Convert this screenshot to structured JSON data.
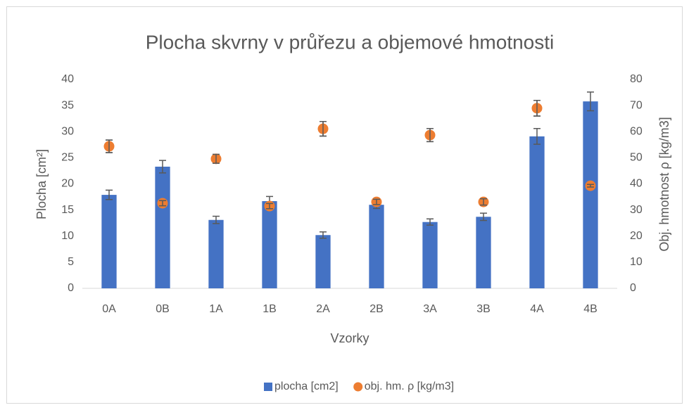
{
  "chart_data": {
    "type": "bar",
    "title": "Plocha skvrny v průřezu a objemové hmotnosti",
    "x_label": "Vzorky",
    "y_label": "Plocha [cm²]",
    "y2_label": "Obj. hmotnost ρ [kg/m3]",
    "categories": [
      "0A",
      "0B",
      "1A",
      "1B",
      "2A",
      "2B",
      "3A",
      "3B",
      "4A",
      "4B"
    ],
    "series": [
      {
        "name": "plocha [cm2]",
        "type": "bar",
        "color": "#4472c4",
        "values": [
          17.9,
          23.3,
          13.1,
          16.7,
          10.2,
          16.0,
          12.7,
          13.7,
          29.1,
          35.8
        ],
        "errors": [
          0.9,
          1.2,
          0.7,
          0.9,
          0.6,
          0.7,
          0.6,
          0.7,
          1.5,
          1.8
        ]
      },
      {
        "name": "obj. hm. ρ [kg/m3]",
        "type": "scatter",
        "axis": "y2",
        "color": "#ed7d31",
        "values": [
          54.4,
          32.6,
          49.6,
          31.5,
          61.1,
          33.1,
          58.7,
          33.1,
          69.0,
          39.3
        ],
        "errors": [
          2.4,
          1.0,
          1.7,
          1.0,
          2.8,
          1.0,
          2.5,
          1.2,
          3.0,
          0.5
        ]
      }
    ],
    "ylim": [
      0,
      40
    ],
    "yticks": [
      0,
      5,
      10,
      15,
      20,
      25,
      30,
      35,
      40
    ],
    "y2lim": [
      0,
      80
    ],
    "y2ticks": [
      0,
      10,
      20,
      30,
      40,
      50,
      60,
      70,
      80
    ],
    "grid": false,
    "legend": "bottom"
  }
}
